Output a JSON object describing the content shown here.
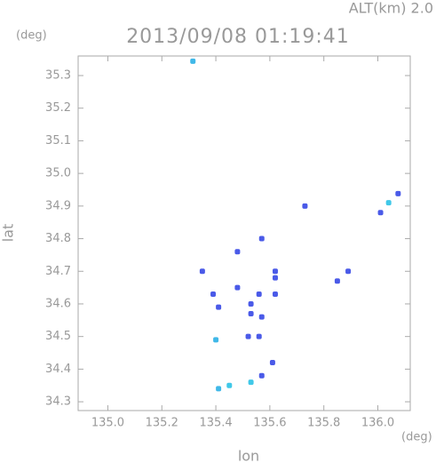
{
  "chart_data": {
    "type": "scatter",
    "altitude_label": "ALT(km) 2.0",
    "title": "2013/09/08 01:19:41",
    "y_unit": "(deg)",
    "x_unit": "(deg)",
    "xlabel": "lon",
    "ylabel": "lat",
    "x": [
      135.315,
      136.075,
      136.04,
      136.01,
      135.73,
      135.57,
      135.48,
      135.62,
      135.35,
      135.89,
      135.85,
      135.39,
      135.48,
      135.56,
      135.41,
      135.53,
      135.53,
      135.57,
      135.56,
      135.52,
      135.4,
      135.61,
      135.57,
      135.53,
      135.45,
      135.41,
      135.62,
      135.62
    ],
    "y": [
      35.344,
      34.938,
      34.91,
      34.88,
      34.9,
      34.8,
      34.76,
      34.7,
      34.7,
      34.7,
      34.67,
      34.63,
      34.65,
      34.63,
      34.59,
      34.6,
      34.57,
      34.56,
      34.5,
      34.5,
      34.49,
      34.42,
      34.38,
      34.36,
      34.35,
      34.34,
      34.63,
      34.68
    ],
    "point_colors": [
      "#40b8e8",
      "#4a5ae8",
      "#40c8e8",
      "#4a5ae8",
      "#4a5ae8",
      "#4a5ae8",
      "#4a5ae8",
      "#4a5ae8",
      "#4a5ae8",
      "#4a5ae8",
      "#4a5ae8",
      "#4a5ae8",
      "#4a5ae8",
      "#4a5ae8",
      "#4a5ae8",
      "#4a5ae8",
      "#4a5ae8",
      "#4a5ae8",
      "#4a5ae8",
      "#4a5ae8",
      "#40b8e8",
      "#4a5ae8",
      "#4a5ae8",
      "#40c8e8",
      "#40c8e8",
      "#40b8e8",
      "#4a5ae8",
      "#4a5ae8"
    ],
    "xlim": [
      134.89,
      136.12
    ],
    "ylim": [
      34.273,
      35.36
    ],
    "xticks": [
      {
        "value": 135.0,
        "label": "135.0"
      },
      135.2,
      135.4,
      135.6,
      135.8,
      {
        "value": 136.0,
        "label": "136.0"
      }
    ],
    "yticks": [
      34.3,
      34.4,
      34.5,
      34.6,
      34.7,
      34.8,
      34.9,
      {
        "value": 35.0,
        "label": "35.0"
      },
      35.1,
      35.2,
      35.3
    ]
  }
}
